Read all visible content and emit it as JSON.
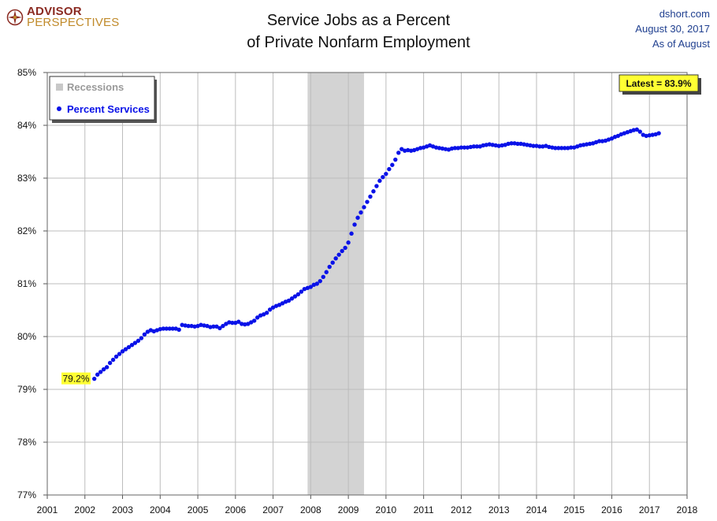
{
  "brand": {
    "line1": "ADVISOR",
    "line2": "PERSPECTIVES"
  },
  "title": {
    "line1": "Service Jobs as a Percent",
    "line2": "of Private Nonfarm Employment"
  },
  "meta": {
    "source": "dshort.com",
    "date": "August 30, 2017",
    "asof": "As of August"
  },
  "colors": {
    "series": "#0a12e8",
    "recession": "#d3d3d3",
    "label_bg": "#ffff33",
    "grid": "#bcbcbc"
  },
  "chart_data": {
    "type": "scatter",
    "title": "Service Jobs as a Percent of Private Nonfarm Employment",
    "xlabel": "",
    "ylabel": "",
    "xlim": [
      2001,
      2018
    ],
    "ylim": [
      77,
      85
    ],
    "x_ticks": [
      "2001",
      "2002",
      "2003",
      "2004",
      "2005",
      "2006",
      "2007",
      "2008",
      "2009",
      "2010",
      "2011",
      "2012",
      "2013",
      "2014",
      "2015",
      "2016",
      "2017",
      "2018"
    ],
    "y_ticks": [
      "77%",
      "78%",
      "79%",
      "80%",
      "81%",
      "82%",
      "83%",
      "84%",
      "85%"
    ],
    "grid": true,
    "legend": {
      "position": "top-left",
      "items": [
        {
          "label": "Recessions",
          "symbol": "gray-square"
        },
        {
          "label": "Percent Services",
          "symbol": "blue-dot"
        }
      ]
    },
    "recession": {
      "start": 2007.917,
      "end": 2009.417
    },
    "annotations": {
      "first_label": "79.2%",
      "latest_label": "Latest = 83.9%"
    },
    "series": [
      {
        "name": "Percent Services",
        "start": 2002.25,
        "step": 0.08333,
        "values": [
          79.2,
          79.28,
          79.33,
          79.38,
          79.42,
          79.5,
          79.56,
          79.62,
          79.67,
          79.72,
          79.76,
          79.8,
          79.84,
          79.88,
          79.92,
          79.97,
          80.04,
          80.09,
          80.12,
          80.1,
          80.12,
          80.14,
          80.15,
          80.15,
          80.15,
          80.15,
          80.15,
          80.13,
          80.22,
          80.21,
          80.2,
          80.2,
          80.19,
          80.2,
          80.22,
          80.21,
          80.2,
          80.18,
          80.19,
          80.19,
          80.16,
          80.2,
          80.24,
          80.27,
          80.26,
          80.26,
          80.28,
          80.24,
          80.23,
          80.24,
          80.27,
          80.3,
          80.36,
          80.4,
          80.42,
          80.45,
          80.51,
          80.55,
          80.58,
          80.6,
          80.63,
          80.66,
          80.68,
          80.72,
          80.76,
          80.8,
          80.85,
          80.9,
          80.92,
          80.94,
          80.98,
          81.0,
          81.05,
          81.13,
          81.22,
          81.32,
          81.4,
          81.48,
          81.55,
          81.62,
          81.68,
          81.78,
          81.95,
          82.12,
          82.25,
          82.35,
          82.45,
          82.55,
          82.65,
          82.75,
          82.85,
          82.95,
          83.02,
          83.08,
          83.17,
          83.25,
          83.35,
          83.48,
          83.55,
          83.52,
          83.53,
          83.52,
          83.53,
          83.55,
          83.57,
          83.58,
          83.6,
          83.62,
          83.6,
          83.58,
          83.57,
          83.56,
          83.55,
          83.54,
          83.56,
          83.57,
          83.57,
          83.58,
          83.58,
          83.58,
          83.59,
          83.6,
          83.6,
          83.6,
          83.62,
          83.63,
          83.64,
          83.63,
          83.62,
          83.61,
          83.62,
          83.63,
          83.65,
          83.66,
          83.66,
          83.65,
          83.65,
          83.64,
          83.63,
          83.62,
          83.61,
          83.61,
          83.6,
          83.6,
          83.61,
          83.59,
          83.58,
          83.57,
          83.57,
          83.57,
          83.57,
          83.57,
          83.58,
          83.58,
          83.6,
          83.62,
          83.63,
          83.64,
          83.65,
          83.66,
          83.68,
          83.7,
          83.7,
          83.71,
          83.73,
          83.75,
          83.78,
          83.8,
          83.83,
          83.85,
          83.87,
          83.89,
          83.91,
          83.92,
          83.88,
          83.82,
          83.8,
          83.81,
          83.82,
          83.83,
          83.85
        ]
      }
    ]
  }
}
